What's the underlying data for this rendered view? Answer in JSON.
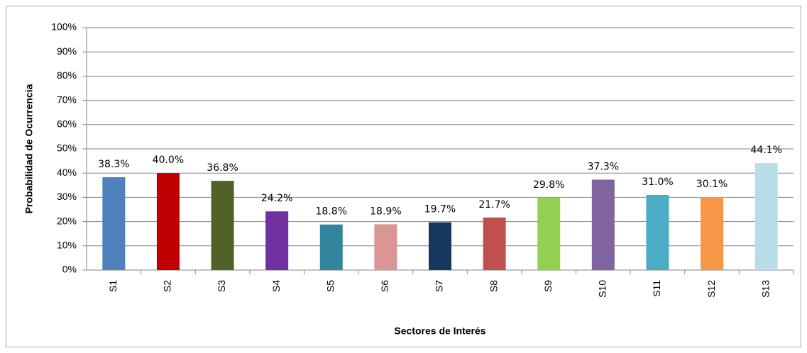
{
  "chart_data": {
    "type": "bar",
    "x_label": "Sectores de Interés",
    "y_label": "Probabilidad de Ocurrencia",
    "categories": [
      "S1",
      "S2",
      "S3",
      "S4",
      "S5",
      "S6",
      "S7",
      "S8",
      "S9",
      "S10",
      "S11",
      "S12",
      "S13"
    ],
    "values": [
      38.3,
      40.0,
      36.8,
      24.2,
      18.8,
      18.9,
      19.7,
      21.7,
      29.8,
      37.3,
      31.0,
      30.1,
      44.1
    ],
    "value_labels": [
      "38.3%",
      "40.0%",
      "36.8%",
      "24.2%",
      "18.8%",
      "18.9%",
      "19.7%",
      "21.7%",
      "29.8%",
      "37.3%",
      "31.0%",
      "30.1%",
      "44.1%"
    ],
    "colors": [
      "#4f81bd",
      "#c00000",
      "#4f6228",
      "#7030a0",
      "#31859c",
      "#d99694",
      "#17375e",
      "#c0504d",
      "#92d050",
      "#8064a2",
      "#4bacc6",
      "#f79646",
      "#b7dee8"
    ],
    "ylim": [
      0,
      100
    ],
    "yticks": [
      {
        "value": 0,
        "label": "0%"
      },
      {
        "value": 10,
        "label": "10%"
      },
      {
        "value": 20,
        "label": "20%"
      },
      {
        "value": 30,
        "label": "30%"
      },
      {
        "value": 40,
        "label": "40%"
      },
      {
        "value": 50,
        "label": "50%"
      },
      {
        "value": 60,
        "label": "60%"
      },
      {
        "value": 70,
        "label": "70%"
      },
      {
        "value": 80,
        "label": "80%"
      },
      {
        "value": 90,
        "label": "90%"
      },
      {
        "value": 100,
        "label": "100%"
      }
    ],
    "grid": true
  }
}
